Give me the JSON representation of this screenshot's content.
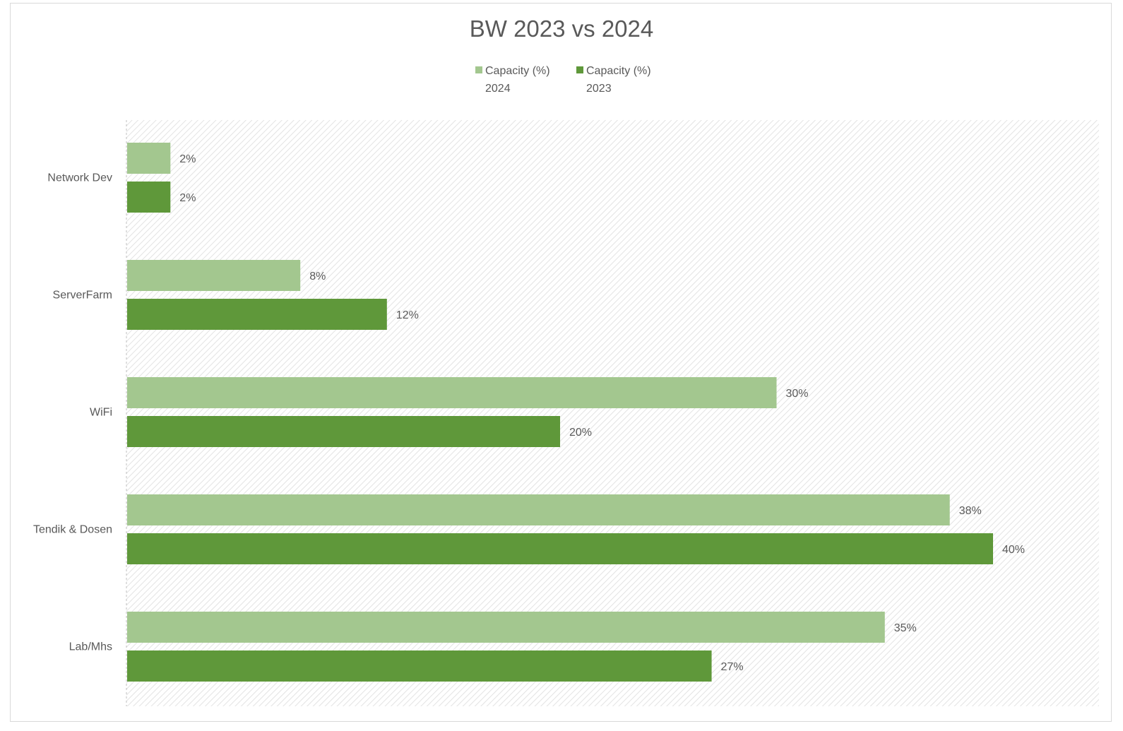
{
  "chart_data": {
    "type": "bar",
    "orientation": "horizontal",
    "title": "BW 2023 vs 2024",
    "categories": [
      "Network Dev",
      "ServerFarm",
      "WiFi",
      "Tendik & Dosen",
      "Lab/Mhs"
    ],
    "series": [
      {
        "name": "Capacity (%) 2024",
        "color": "#a3c78f",
        "values": [
          2,
          8,
          30,
          38,
          35
        ],
        "labels": [
          "2%",
          "8%",
          "30%",
          "38%",
          "35%"
        ]
      },
      {
        "name": "Capacity (%) 2023",
        "color": "#5f983a",
        "values": [
          2,
          12,
          20,
          40,
          27
        ],
        "labels": [
          "2%",
          "12%",
          "20%",
          "40%",
          "27%"
        ]
      }
    ],
    "xlim": [
      0,
      45
    ],
    "legend_position": "top",
    "grid": false,
    "plot_background": "diagonal-hatch"
  }
}
